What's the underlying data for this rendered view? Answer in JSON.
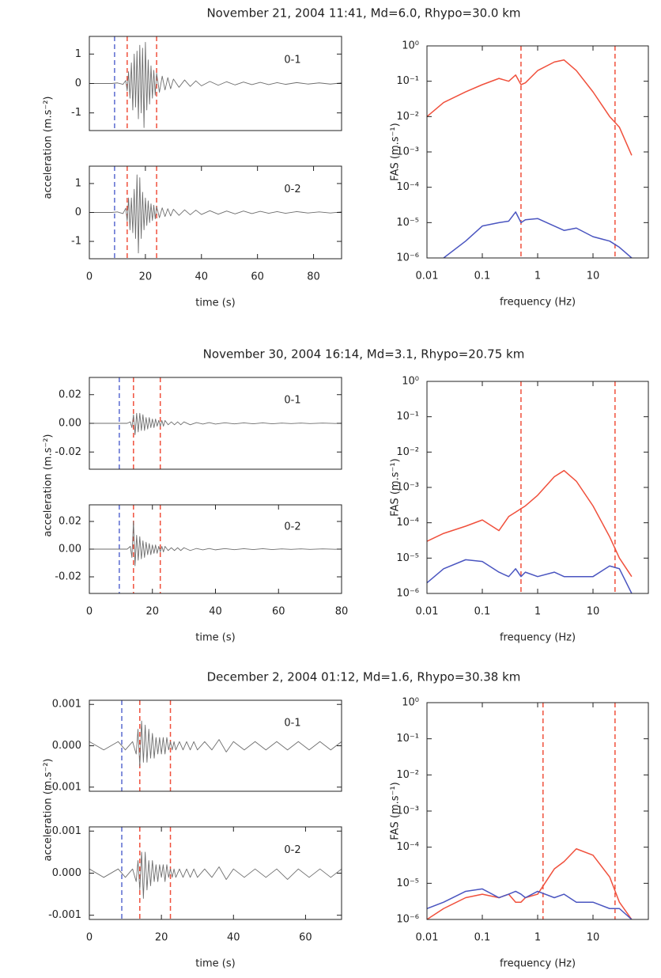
{
  "chart_data": [
    {
      "type": "line",
      "title": "November 21, 2004 11:41, Md=6.0, Rhypo=30.0 km",
      "ylabel": "acceleration (m.s⁻²)",
      "annotation": "0-1",
      "color": "#6e6e6e",
      "xlim": [
        0,
        90
      ],
      "ylim": [
        -1.6,
        1.6
      ],
      "yticks": [
        1,
        0,
        -1
      ],
      "vlines": [
        {
          "value": 9,
          "color": "#5a6ad0"
        },
        {
          "value": 13.5,
          "color": "#f0503c"
        },
        {
          "value": 24,
          "color": "#f0503c"
        }
      ],
      "x": [
        0,
        4,
        8,
        10,
        12,
        13,
        13.5,
        14,
        14.5,
        15,
        15.5,
        16,
        16.5,
        17,
        17.5,
        18,
        18.5,
        19,
        19.5,
        20,
        20.5,
        21,
        21.5,
        22,
        22.5,
        23,
        23.5,
        24,
        25,
        26,
        27,
        28,
        29,
        30,
        32,
        34,
        36,
        38,
        40,
        43,
        46,
        49,
        52,
        55,
        58,
        61,
        64,
        67,
        70,
        74,
        78,
        82,
        86,
        90
      ],
      "values": [
        0,
        0,
        0,
        0.02,
        -0.03,
        0.1,
        -0.25,
        0.4,
        -0.5,
        0.7,
        -0.9,
        1.0,
        -0.8,
        1.1,
        -1.2,
        1.3,
        -1.0,
        1.2,
        -1.5,
        1.4,
        -0.9,
        0.8,
        -0.7,
        0.6,
        -0.5,
        0.45,
        -0.4,
        0.35,
        -0.3,
        0.25,
        -0.22,
        0.2,
        -0.18,
        0.15,
        -0.13,
        0.12,
        -0.1,
        0.09,
        -0.08,
        0.07,
        -0.06,
        0.06,
        -0.05,
        0.05,
        -0.04,
        0.04,
        -0.04,
        0.03,
        -0.03,
        0.03,
        -0.02,
        0.02,
        -0.02,
        0.02
      ]
    },
    {
      "type": "line",
      "xlabel": "time (s)",
      "annotation": "0-2",
      "color": "#6e6e6e",
      "xlim": [
        0,
        90
      ],
      "xticks": [
        0,
        20,
        40,
        60,
        80
      ],
      "ylim": [
        -1.6,
        1.6
      ],
      "yticks": [
        1,
        0,
        -1
      ],
      "vlines": [
        {
          "value": 9,
          "color": "#5a6ad0"
        },
        {
          "value": 13.5,
          "color": "#f0503c"
        },
        {
          "value": 24,
          "color": "#f0503c"
        }
      ],
      "x": [
        0,
        4,
        8,
        10,
        12,
        13,
        13.5,
        14,
        14.5,
        15,
        15.5,
        16,
        16.5,
        17,
        17.5,
        18,
        18.5,
        19,
        19.5,
        20,
        20.5,
        21,
        21.5,
        22,
        22.5,
        23,
        23.5,
        24,
        25,
        26,
        27,
        28,
        29,
        30,
        32,
        34,
        36,
        38,
        40,
        43,
        46,
        49,
        52,
        55,
        58,
        61,
        64,
        67,
        70,
        74,
        78,
        82,
        86,
        90
      ],
      "values": [
        0,
        0,
        0,
        0.02,
        -0.04,
        0.15,
        -0.3,
        0.5,
        -0.6,
        0.5,
        -0.7,
        0.8,
        -0.9,
        1.3,
        -1.4,
        1.2,
        -0.9,
        0.7,
        -0.6,
        0.5,
        -0.45,
        0.4,
        -0.35,
        0.3,
        -0.28,
        0.25,
        -0.22,
        0.2,
        -0.18,
        0.16,
        -0.14,
        0.13,
        -0.12,
        0.11,
        -0.1,
        0.09,
        -0.08,
        0.08,
        -0.07,
        0.06,
        -0.06,
        0.05,
        -0.05,
        0.05,
        -0.04,
        0.04,
        -0.03,
        0.03,
        -0.03,
        0.03,
        -0.02,
        0.02,
        -0.02,
        0.02
      ]
    },
    {
      "type": "line",
      "log_x": true,
      "log_y": true,
      "xlabel": "frequency (Hz)",
      "ylabel": "FAS (m.s⁻¹)",
      "xlim": [
        0.01,
        100
      ],
      "xticks": [
        0.01,
        0.1,
        1,
        10
      ],
      "ylim": [
        1e-06,
        1
      ],
      "yticks": [
        {
          "value": 1,
          "label": "10⁰"
        },
        {
          "value": 0.1,
          "label": "10⁻¹"
        },
        {
          "value": 0.01,
          "label": "10⁻²"
        },
        {
          "value": 0.001,
          "label": "10⁻³"
        },
        {
          "value": 0.0001,
          "label": "10⁻⁴"
        },
        {
          "value": 1e-05,
          "label": "10⁻⁵"
        },
        {
          "value": 1e-06,
          "label": "10⁻⁶"
        }
      ],
      "vlines": [
        {
          "value": 0.5,
          "color": "#f0503c"
        },
        {
          "value": 25,
          "color": "#f0503c"
        }
      ],
      "x": [
        0.01,
        0.02,
        0.05,
        0.1,
        0.2,
        0.3,
        0.4,
        0.5,
        0.6,
        1,
        2,
        3,
        5,
        10,
        20,
        30,
        50
      ],
      "series": [
        {
          "color": "#f0503c",
          "values": [
            0.01,
            0.025,
            0.05,
            0.08,
            0.12,
            0.1,
            0.15,
            0.08,
            0.09,
            0.2,
            0.35,
            0.4,
            0.2,
            0.05,
            0.01,
            0.005,
            0.0008
          ]
        },
        {
          "color": "#4a55c0",
          "values": [
            null,
            1e-06,
            3e-06,
            8e-06,
            1e-05,
            1.1e-05,
            2e-05,
            1e-05,
            1.2e-05,
            1.3e-05,
            8e-06,
            6e-06,
            7e-06,
            4e-06,
            3e-06,
            2e-06,
            1e-06
          ]
        }
      ]
    },
    {
      "type": "line",
      "title": "November 30, 2004 16:14, Md=3.1, Rhypo=20.75 km",
      "ylabel": "acceleration (m.s⁻²)",
      "annotation": "0-1",
      "color": "#6e6e6e",
      "xlim": [
        0,
        80
      ],
      "ylim": [
        -0.032,
        0.032
      ],
      "yticks": [
        0.02,
        {
          "value": 0,
          "label": "0.00"
        },
        -0.02
      ],
      "vlines": [
        {
          "value": 9.5,
          "color": "#5a6ad0"
        },
        {
          "value": 14,
          "color": "#f0503c"
        },
        {
          "value": 22.5,
          "color": "#f0503c"
        }
      ],
      "x": [
        0,
        4,
        8,
        10,
        12,
        13,
        13.5,
        14,
        14.5,
        15,
        15.5,
        16,
        16.5,
        17,
        17.5,
        18,
        18.5,
        19,
        19.5,
        20,
        20.5,
        21,
        21.5,
        22,
        22.5,
        23,
        23.5,
        24,
        25,
        26,
        27,
        28,
        29,
        30,
        32,
        34,
        36,
        38,
        40,
        43,
        46,
        49,
        52,
        55,
        58,
        61,
        64,
        67,
        70,
        74,
        78,
        80
      ],
      "values": [
        0,
        0,
        0,
        0,
        0,
        0.001,
        -0.003,
        0.006,
        -0.008,
        0.007,
        -0.006,
        0.007,
        -0.005,
        0.006,
        -0.005,
        0.004,
        -0.004,
        0.004,
        -0.003,
        0.003,
        -0.003,
        0.003,
        -0.002,
        0.002,
        -0.002,
        0.002,
        -0.002,
        0.002,
        -0.001,
        0.001,
        -0.001,
        0.001,
        -0.001,
        0.001,
        -0.001,
        0.0005,
        -0.0005,
        0.0005,
        -0.0005,
        0.0004,
        -0.0004,
        0.0003,
        -0.0003,
        0.0003,
        -0.0003,
        0.0002,
        -0.0002,
        0.0002,
        -0.0002,
        0.0002,
        -0.0001,
        0.0001
      ]
    },
    {
      "type": "line",
      "xlabel": "time (s)",
      "annotation": "0-2",
      "color": "#6e6e6e",
      "xlim": [
        0,
        80
      ],
      "xticks": [
        0,
        20,
        40,
        60,
        80
      ],
      "ylim": [
        -0.032,
        0.032
      ],
      "yticks": [
        0.02,
        {
          "value": 0,
          "label": "0.00"
        },
        -0.02
      ],
      "vlines": [
        {
          "value": 9.5,
          "color": "#5a6ad0"
        },
        {
          "value": 14,
          "color": "#f0503c"
        },
        {
          "value": 22.5,
          "color": "#f0503c"
        }
      ],
      "x": [
        0,
        4,
        8,
        10,
        12,
        13,
        13.5,
        14,
        14.5,
        15,
        15.5,
        16,
        16.5,
        17,
        17.5,
        18,
        18.5,
        19,
        19.5,
        20,
        20.5,
        21,
        21.5,
        22,
        22.5,
        23,
        23.5,
        24,
        25,
        26,
        27,
        28,
        29,
        30,
        32,
        34,
        36,
        38,
        40,
        43,
        46,
        49,
        52,
        55,
        58,
        61,
        64,
        67,
        70,
        74,
        78,
        80
      ],
      "values": [
        0,
        0,
        0,
        0,
        0,
        0.002,
        -0.006,
        0.02,
        -0.012,
        0.01,
        -0.008,
        0.009,
        -0.007,
        0.006,
        -0.006,
        0.005,
        -0.004,
        0.004,
        -0.004,
        0.003,
        -0.003,
        0.003,
        -0.003,
        0.002,
        -0.002,
        0.002,
        -0.002,
        0.002,
        -0.001,
        0.001,
        -0.001,
        0.001,
        -0.001,
        0.001,
        -0.001,
        0.0005,
        -0.0005,
        0.0005,
        -0.0005,
        0.0004,
        -0.0004,
        0.0003,
        -0.0003,
        0.0003,
        -0.0003,
        0.0002,
        -0.0002,
        0.0002,
        -0.0002,
        0.0002,
        -0.0001,
        0.0001
      ]
    },
    {
      "type": "line",
      "log_x": true,
      "log_y": true,
      "xlabel": "frequency (Hz)",
      "ylabel": "FAS (m.s⁻¹)",
      "xlim": [
        0.01,
        100
      ],
      "xticks": [
        0.01,
        0.1,
        1,
        10
      ],
      "ylim": [
        1e-06,
        1
      ],
      "yticks": [
        {
          "value": 1,
          "label": "10⁰"
        },
        {
          "value": 0.1,
          "label": "10⁻¹"
        },
        {
          "value": 0.01,
          "label": "10⁻²"
        },
        {
          "value": 0.001,
          "label": "10⁻³"
        },
        {
          "value": 0.0001,
          "label": "10⁻⁴"
        },
        {
          "value": 1e-05,
          "label": "10⁻⁵"
        },
        {
          "value": 1e-06,
          "label": "10⁻⁶"
        }
      ],
      "vlines": [
        {
          "value": 0.5,
          "color": "#f0503c"
        },
        {
          "value": 25,
          "color": "#f0503c"
        }
      ],
      "x": [
        0.01,
        0.02,
        0.05,
        0.1,
        0.2,
        0.3,
        0.4,
        0.5,
        0.6,
        1,
        2,
        3,
        5,
        10,
        20,
        30,
        50
      ],
      "series": [
        {
          "color": "#f0503c",
          "values": [
            3e-05,
            5e-05,
            8e-05,
            0.00012,
            6e-05,
            0.00015,
            0.0002,
            0.00025,
            0.0003,
            0.0006,
            0.002,
            0.003,
            0.0015,
            0.0003,
            4e-05,
            1e-05,
            3e-06
          ]
        },
        {
          "color": "#4a55c0",
          "values": [
            2e-06,
            5e-06,
            9e-06,
            8e-06,
            4e-06,
            3e-06,
            5e-06,
            3e-06,
            4e-06,
            3e-06,
            4e-06,
            3e-06,
            3e-06,
            3e-06,
            6e-06,
            5e-06,
            1e-06
          ]
        }
      ]
    },
    {
      "type": "line",
      "title": "December 2, 2004 01:12, Md=1.6, Rhypo=30.38 km",
      "ylabel": "acceleration (m.s⁻²)",
      "annotation": "0-1",
      "color": "#6e6e6e",
      "xlim": [
        0,
        70
      ],
      "ylim": [
        -0.0011,
        0.0011
      ],
      "yticks": [
        0.001,
        {
          "value": 0,
          "label": "0.000"
        },
        -0.001
      ],
      "vlines": [
        {
          "value": 9,
          "color": "#5a6ad0"
        },
        {
          "value": 14,
          "color": "#f0503c"
        },
        {
          "value": 22.5,
          "color": "#f0503c"
        }
      ],
      "x": [
        0,
        4,
        8,
        10,
        12,
        13,
        13.5,
        14,
        14.5,
        15,
        15.5,
        16,
        16.5,
        17,
        17.5,
        18,
        18.5,
        19,
        19.5,
        20,
        20.5,
        21,
        21.5,
        22,
        22.5,
        23,
        23.5,
        24,
        25,
        26,
        27,
        28,
        29,
        30,
        32,
        34,
        36,
        38,
        40,
        43,
        46,
        49,
        52,
        55,
        58,
        61,
        64,
        67,
        70
      ],
      "values": [
        0.0001,
        -0.0001,
        0.0001,
        -0.0001,
        0.0001,
        -0.0002,
        0.0004,
        -0.0005,
        0.0006,
        -0.0004,
        0.0005,
        -0.0004,
        0.0004,
        -0.0003,
        0.0003,
        -0.0003,
        0.0002,
        -0.0002,
        0.0002,
        -0.0002,
        0.0002,
        -0.0002,
        0.0002,
        -0.0001,
        0.0001,
        -0.0001,
        0.0001,
        -0.0001,
        0.0001,
        -0.0001,
        0.0001,
        -0.0001,
        0.0001,
        -0.0001,
        0.0001,
        -0.0001,
        0.00015,
        -0.00015,
        0.0001,
        -0.0001,
        0.0001,
        -0.0001,
        0.0001,
        -0.0001,
        0.0001,
        -0.0001,
        0.0001,
        -0.0001,
        0.0001
      ]
    },
    {
      "type": "line",
      "xlabel": "time (s)",
      "annotation": "0-2",
      "color": "#6e6e6e",
      "xlim": [
        0,
        70
      ],
      "xticks": [
        0,
        20,
        40,
        60
      ],
      "ylim": [
        -0.0011,
        0.0011
      ],
      "yticks": [
        0.001,
        {
          "value": 0,
          "label": "0.000"
        },
        -0.001
      ],
      "vlines": [
        {
          "value": 9,
          "color": "#5a6ad0"
        },
        {
          "value": 14,
          "color": "#f0503c"
        },
        {
          "value": 22.5,
          "color": "#f0503c"
        }
      ],
      "x": [
        0,
        4,
        8,
        10,
        12,
        13,
        13.5,
        14,
        14.5,
        15,
        15.5,
        16,
        16.5,
        17,
        17.5,
        18,
        18.5,
        19,
        19.5,
        20,
        20.5,
        21,
        21.5,
        22,
        22.5,
        23,
        23.5,
        24,
        25,
        26,
        27,
        28,
        29,
        30,
        32,
        34,
        36,
        38,
        40,
        43,
        46,
        49,
        52,
        55,
        58,
        61,
        64,
        67,
        70
      ],
      "values": [
        0.0001,
        -0.0001,
        0.0001,
        -0.0001,
        0.0001,
        -0.0002,
        0.0003,
        -0.0004,
        0.0005,
        -0.0006,
        0.0005,
        -0.0004,
        0.0003,
        -0.0003,
        0.0003,
        -0.0002,
        0.0002,
        -0.0002,
        0.0002,
        -0.0001,
        0.0002,
        -0.0002,
        0.0002,
        -0.0001,
        0.0001,
        -0.0001,
        0.0001,
        -0.0001,
        0.0001,
        -0.0001,
        0.0001,
        -0.0001,
        0.0001,
        -0.0001,
        0.0001,
        -0.0001,
        0.00015,
        -0.00015,
        0.0001,
        -0.0001,
        0.0001,
        -0.0001,
        0.0001,
        -0.00015,
        0.0001,
        -0.0001,
        0.0001,
        -0.0001,
        0.0001
      ]
    },
    {
      "type": "line",
      "log_x": true,
      "log_y": true,
      "xlabel": "frequency (Hz)",
      "ylabel": "FAS (m.s⁻¹)",
      "xlim": [
        0.01,
        100
      ],
      "xticks": [
        0.01,
        0.1,
        1,
        10
      ],
      "ylim": [
        1e-06,
        1
      ],
      "yticks": [
        {
          "value": 1,
          "label": "10⁰"
        },
        {
          "value": 0.1,
          "label": "10⁻¹"
        },
        {
          "value": 0.01,
          "label": "10⁻²"
        },
        {
          "value": 0.001,
          "label": "10⁻³"
        },
        {
          "value": 0.0001,
          "label": "10⁻⁴"
        },
        {
          "value": 1e-05,
          "label": "10⁻⁵"
        },
        {
          "value": 1e-06,
          "label": "10⁻⁶"
        }
      ],
      "vlines": [
        {
          "value": 1.25,
          "color": "#f0503c"
        },
        {
          "value": 25,
          "color": "#f0503c"
        }
      ],
      "x": [
        0.01,
        0.02,
        0.05,
        0.1,
        0.2,
        0.3,
        0.4,
        0.5,
        0.6,
        1,
        2,
        3,
        5,
        10,
        20,
        30,
        50
      ],
      "series": [
        {
          "color": "#f0503c",
          "values": [
            1e-06,
            2e-06,
            4e-06,
            5e-06,
            4e-06,
            5e-06,
            3e-06,
            3e-06,
            4e-06,
            5e-06,
            2.5e-05,
            4e-05,
            9e-05,
            6e-05,
            1.5e-05,
            3e-06,
            1e-06
          ]
        },
        {
          "color": "#4a55c0",
          "values": [
            2e-06,
            3e-06,
            6e-06,
            7e-06,
            4e-06,
            5e-06,
            6e-06,
            5e-06,
            4e-06,
            6e-06,
            4e-06,
            5e-06,
            3e-06,
            3e-06,
            2e-06,
            2e-06,
            1e-06
          ]
        }
      ]
    }
  ]
}
